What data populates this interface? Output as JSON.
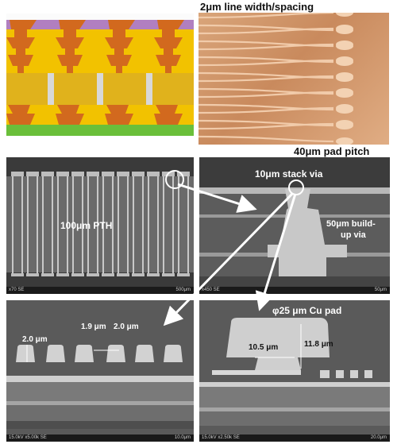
{
  "top_left": {
    "colors": {
      "core": "#e0b21c",
      "buildup": "#f2c200",
      "copper": "#d2691e",
      "pth_fill": "#d8d8d8",
      "top_layer": "#b17fc0",
      "bottom_layer": "#6abf3a",
      "background": "#fbfbfb"
    }
  },
  "top_right": {
    "caption_top": "2μm line width/spacing",
    "caption_bottom": "40μm pad pitch"
  },
  "mid_left": {
    "label": "100μm PTH",
    "footer_left": "x70 SE",
    "footer_right": "500μm"
  },
  "mid_right": {
    "label_stack": "10μm stack via",
    "label_buildup_1": "50μm build-",
    "label_buildup_2": "up via",
    "footer_left": "x450 SE",
    "footer_right": "50μm"
  },
  "bot_left": {
    "dim_height": "2.0 μm",
    "dim_space": "1.9 μm",
    "dim_width": "2.0 μm",
    "footer_left": "15.0kV x5.00k SE",
    "footer_right": "10.0μm"
  },
  "bot_right": {
    "title": "φ25 μm Cu pad",
    "dim_width": "10.5 μm",
    "dim_height": "11.8 μm",
    "footer_left": "15.0kV x2.50k SE",
    "footer_right": "20.0μm"
  }
}
